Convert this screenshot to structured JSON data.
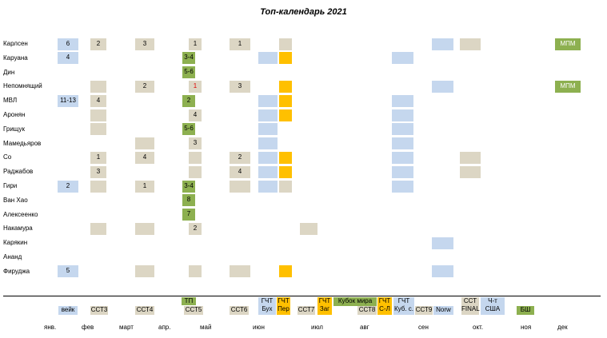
{
  "colors": {
    "beige": "#dcd6c4",
    "blue": "#c5d7ee",
    "orange": "#ffc000",
    "green": "#8db050",
    "red": "#e00000"
  },
  "chart_data": {
    "type": "table",
    "title": "Топ-календарь 2021",
    "players": [
      "Карлсен",
      "Каруана",
      "Дин",
      "Непомнящий",
      "МВЛ",
      "Аронян",
      "Грищук",
      "Мамедьяров",
      "Со",
      "Раджабов",
      "Гири",
      "Ван Хао",
      "Алексеенко",
      "Накамура",
      "Карякин",
      "Ананд",
      "Фируджа"
    ],
    "rows": [
      [
        [
          "veik",
          "blue",
          "6"
        ],
        [
          "sst3",
          "beige",
          "2"
        ],
        [
          "sst4",
          "beige",
          "3"
        ],
        [
          "sst5",
          "beige",
          "1"
        ],
        [
          "sst6",
          "beige",
          "1"
        ],
        [
          "gchtper",
          "beige",
          ""
        ],
        [
          "norw",
          "blue",
          ""
        ],
        [
          "sstfinal",
          "beige",
          ""
        ],
        [
          "bsh",
          "green",
          "МПМ"
        ]
      ],
      [
        [
          "veik",
          "blue",
          "4"
        ],
        [
          "tp",
          "green",
          "3-4"
        ],
        [
          "gchtbuh",
          "blue",
          ""
        ],
        [
          "gchtper",
          "orange",
          ""
        ],
        [
          "gchtkub",
          "blue",
          ""
        ]
      ],
      [
        [
          "tp",
          "green",
          "5-6"
        ]
      ],
      [
        [
          "sst3",
          "beige",
          ""
        ],
        [
          "sst4",
          "beige",
          "2"
        ],
        [
          "sst5",
          "beige",
          "1",
          "red"
        ],
        [
          "sst6",
          "beige",
          "3"
        ],
        [
          "gchtper",
          "orange",
          ""
        ],
        [
          "norw",
          "blue",
          ""
        ],
        [
          "bsh",
          "green",
          "МПМ"
        ]
      ],
      [
        [
          "veik",
          "blue",
          "11-13"
        ],
        [
          "sst3",
          "beige",
          "4"
        ],
        [
          "tp",
          "green",
          "2"
        ],
        [
          "gchtbuh",
          "blue",
          ""
        ],
        [
          "gchtper",
          "orange",
          ""
        ],
        [
          "gchtkub",
          "blue",
          ""
        ]
      ],
      [
        [
          "sst3",
          "beige",
          ""
        ],
        [
          "sst5",
          "beige",
          "4"
        ],
        [
          "gchtbuh",
          "blue",
          ""
        ],
        [
          "gchtper",
          "orange",
          ""
        ],
        [
          "gchtkub",
          "blue",
          ""
        ]
      ],
      [
        [
          "sst3",
          "beige",
          ""
        ],
        [
          "tp",
          "green",
          "5-6"
        ],
        [
          "gchtbuh",
          "blue",
          ""
        ],
        [
          "gchtkub",
          "blue",
          ""
        ]
      ],
      [
        [
          "sst4",
          "beige",
          ""
        ],
        [
          "sst5",
          "beige",
          "3"
        ],
        [
          "gchtbuh",
          "blue",
          ""
        ],
        [
          "gchtkub",
          "blue",
          ""
        ]
      ],
      [
        [
          "sst3",
          "beige",
          "1"
        ],
        [
          "sst4",
          "beige",
          "4"
        ],
        [
          "sst5",
          "beige",
          ""
        ],
        [
          "sst6",
          "beige",
          "2"
        ],
        [
          "gchtbuh",
          "blue",
          ""
        ],
        [
          "gchtper",
          "orange",
          ""
        ],
        [
          "gchtkub",
          "blue",
          ""
        ],
        [
          "sstfinal",
          "beige",
          ""
        ]
      ],
      [
        [
          "sst3",
          "beige",
          "3"
        ],
        [
          "sst5",
          "beige",
          ""
        ],
        [
          "sst6",
          "beige",
          "4"
        ],
        [
          "gchtbuh",
          "blue",
          ""
        ],
        [
          "gchtper",
          "orange",
          ""
        ],
        [
          "gchtkub",
          "blue",
          ""
        ],
        [
          "sstfinal",
          "beige",
          ""
        ]
      ],
      [
        [
          "veik",
          "blue",
          "2"
        ],
        [
          "sst3",
          "beige",
          ""
        ],
        [
          "sst4",
          "beige",
          "1"
        ],
        [
          "tp",
          "green",
          "3-4"
        ],
        [
          "sst6",
          "beige",
          ""
        ],
        [
          "gchtbuh",
          "blue",
          ""
        ],
        [
          "gchtper",
          "beige",
          ""
        ],
        [
          "gchtkub",
          "blue",
          ""
        ]
      ],
      [
        [
          "tp",
          "green",
          "8"
        ]
      ],
      [
        [
          "tp",
          "green",
          "7"
        ]
      ],
      [
        [
          "sst3",
          "beige",
          ""
        ],
        [
          "sst4",
          "beige",
          ""
        ],
        [
          "sst5",
          "beige",
          "2"
        ],
        [
          "sst7",
          "beige",
          ""
        ]
      ],
      [
        [
          "norw",
          "blue",
          ""
        ]
      ],
      [],
      [
        [
          "veik",
          "blue",
          "5"
        ],
        [
          "sst4",
          "beige",
          ""
        ],
        [
          "sst5",
          "beige",
          ""
        ],
        [
          "sst6",
          "beige",
          ""
        ],
        [
          "gchtper",
          "orange",
          ""
        ],
        [
          "norw",
          "blue",
          ""
        ]
      ]
    ],
    "events": [
      {
        "id": "veik",
        "label": "вейк",
        "color": "blue"
      },
      {
        "id": "sst3",
        "label": "ССТ3",
        "color": "beige"
      },
      {
        "id": "sst4",
        "label": "ССТ4",
        "color": "beige"
      },
      {
        "id": "tp",
        "label": "ТП",
        "color": "green"
      },
      {
        "id": "sst5",
        "label": "ССТ5",
        "color": "beige"
      },
      {
        "id": "sst6",
        "label": "ССТ6",
        "color": "beige"
      },
      {
        "id": "gchtbuh",
        "label": "ГЧТ Бух",
        "color": "blue"
      },
      {
        "id": "gchtper",
        "label": "ГЧТ Пер",
        "color": "orange"
      },
      {
        "id": "sst7",
        "label": "ССТ7",
        "color": "beige"
      },
      {
        "id": "gchtzag",
        "label": "ГЧТ Заг",
        "color": "orange"
      },
      {
        "id": "kubok",
        "label": "Кубок мира",
        "color": "green"
      },
      {
        "id": "sst8",
        "label": "ССТ8",
        "color": "beige"
      },
      {
        "id": "gchtsl",
        "label": "ГЧТ С-Л",
        "color": "orange"
      },
      {
        "id": "gchtkub",
        "label": "ГЧТ Куб. с.",
        "color": "blue"
      },
      {
        "id": "sst9",
        "label": "ССТ9",
        "color": "beige"
      },
      {
        "id": "norw",
        "label": "Norw",
        "color": "blue"
      },
      {
        "id": "sstfinal",
        "label": "ССТ FINAL",
        "color": "beige"
      },
      {
        "id": "chtusa",
        "label": "Ч-т США",
        "color": "blue"
      },
      {
        "id": "bsh",
        "label": "БШ",
        "color": "green"
      }
    ],
    "months": [
      "янв.",
      "фев",
      "март",
      "апр.",
      "май",
      "июн",
      "июл",
      "авг",
      "сен",
      "окт.",
      "ноя",
      "дек"
    ]
  }
}
